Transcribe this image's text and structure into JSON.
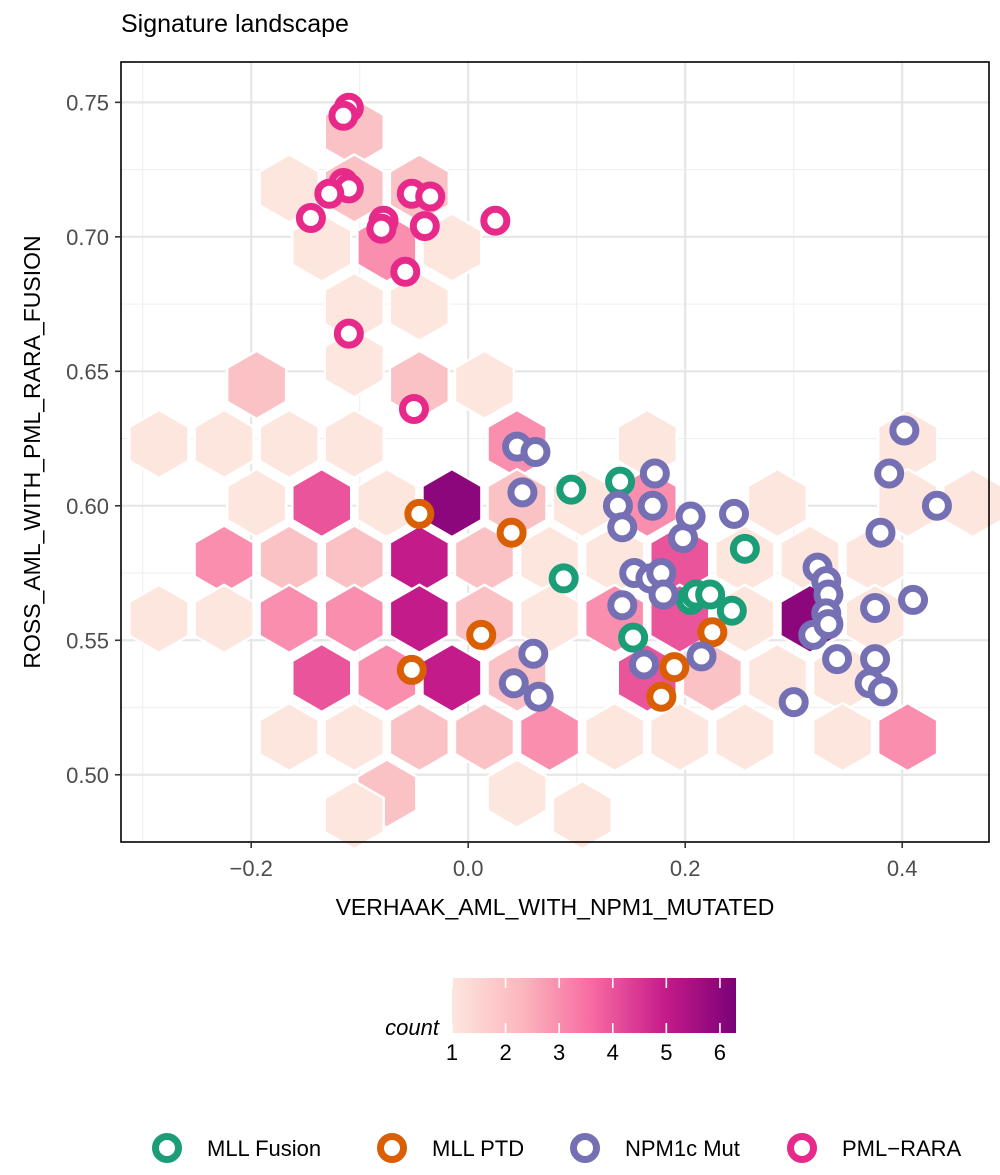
{
  "chart_data": {
    "type": "scatter",
    "title": "Signature landscape",
    "xlabel": "VERHAAK_AML_WITH_NPM1_MUTATED",
    "ylabel": "ROSS_AML_WITH_PML_RARA_FUSION",
    "xlim": [
      -0.32,
      0.48
    ],
    "ylim": [
      0.475,
      0.765
    ],
    "x_ticks": [
      -0.2,
      0.0,
      0.2,
      0.4
    ],
    "x_tick_labels": [
      "−0.2",
      "0.0",
      "0.2",
      "0.4"
    ],
    "y_ticks": [
      0.5,
      0.55,
      0.6,
      0.65,
      0.7,
      0.75
    ],
    "y_tick_labels": [
      "0.50",
      "0.55",
      "0.60",
      "0.65",
      "0.70",
      "0.75"
    ],
    "grid": true,
    "hex_layer": {
      "legend_title": "count",
      "count_ticks": [
        1,
        2,
        3,
        4,
        5,
        6
      ],
      "count_range": [
        1,
        6.3
      ],
      "colors": [
        "#fde6de",
        "#fbb6bd",
        "#f768a1",
        "#c51b8a",
        "#7a0177"
      ],
      "bins": [
        {
          "x": -0.105,
          "y": 0.739,
          "count": 2
        },
        {
          "x": -0.165,
          "y": 0.718,
          "count": 1
        },
        {
          "x": -0.105,
          "y": 0.718,
          "count": 2
        },
        {
          "x": -0.045,
          "y": 0.718,
          "count": 2
        },
        {
          "x": -0.135,
          "y": 0.696,
          "count": 1
        },
        {
          "x": -0.075,
          "y": 0.696,
          "count": 3
        },
        {
          "x": -0.015,
          "y": 0.696,
          "count": 1
        },
        {
          "x": -0.105,
          "y": 0.674,
          "count": 1
        },
        {
          "x": -0.045,
          "y": 0.674,
          "count": 1
        },
        {
          "x": -0.105,
          "y": 0.653,
          "count": 1
        },
        {
          "x": -0.195,
          "y": 0.645,
          "count": 2
        },
        {
          "x": -0.045,
          "y": 0.645,
          "count": 2
        },
        {
          "x": 0.015,
          "y": 0.645,
          "count": 1
        },
        {
          "x": -0.285,
          "y": 0.623,
          "count": 1
        },
        {
          "x": -0.225,
          "y": 0.623,
          "count": 1
        },
        {
          "x": -0.165,
          "y": 0.623,
          "count": 1
        },
        {
          "x": -0.105,
          "y": 0.623,
          "count": 1
        },
        {
          "x": 0.045,
          "y": 0.623,
          "count": 3
        },
        {
          "x": 0.165,
          "y": 0.623,
          "count": 1
        },
        {
          "x": 0.405,
          "y": 0.623,
          "count": 1
        },
        {
          "x": -0.195,
          "y": 0.601,
          "count": 1
        },
        {
          "x": -0.135,
          "y": 0.601,
          "count": 4
        },
        {
          "x": -0.075,
          "y": 0.601,
          "count": 1
        },
        {
          "x": -0.015,
          "y": 0.601,
          "count": 6
        },
        {
          "x": 0.045,
          "y": 0.601,
          "count": 2
        },
        {
          "x": 0.105,
          "y": 0.601,
          "count": 1
        },
        {
          "x": 0.165,
          "y": 0.601,
          "count": 3
        },
        {
          "x": 0.285,
          "y": 0.601,
          "count": 1
        },
        {
          "x": 0.405,
          "y": 0.601,
          "count": 1
        },
        {
          "x": 0.465,
          "y": 0.601,
          "count": 1
        },
        {
          "x": -0.225,
          "y": 0.58,
          "count": 3
        },
        {
          "x": -0.165,
          "y": 0.58,
          "count": 2
        },
        {
          "x": -0.105,
          "y": 0.58,
          "count": 2
        },
        {
          "x": -0.045,
          "y": 0.58,
          "count": 5
        },
        {
          "x": 0.015,
          "y": 0.58,
          "count": 2
        },
        {
          "x": 0.075,
          "y": 0.58,
          "count": 1
        },
        {
          "x": 0.135,
          "y": 0.58,
          "count": 1
        },
        {
          "x": 0.195,
          "y": 0.58,
          "count": 4
        },
        {
          "x": 0.255,
          "y": 0.58,
          "count": 1
        },
        {
          "x": 0.315,
          "y": 0.58,
          "count": 1
        },
        {
          "x": 0.375,
          "y": 0.58,
          "count": 1
        },
        {
          "x": -0.285,
          "y": 0.558,
          "count": 1
        },
        {
          "x": -0.225,
          "y": 0.558,
          "count": 1
        },
        {
          "x": -0.165,
          "y": 0.558,
          "count": 3
        },
        {
          "x": -0.105,
          "y": 0.558,
          "count": 3
        },
        {
          "x": -0.045,
          "y": 0.558,
          "count": 5
        },
        {
          "x": 0.015,
          "y": 0.558,
          "count": 2
        },
        {
          "x": 0.075,
          "y": 0.558,
          "count": 1
        },
        {
          "x": 0.135,
          "y": 0.558,
          "count": 3
        },
        {
          "x": 0.195,
          "y": 0.558,
          "count": 4
        },
        {
          "x": 0.255,
          "y": 0.558,
          "count": 1
        },
        {
          "x": 0.315,
          "y": 0.558,
          "count": 6
        },
        {
          "x": 0.375,
          "y": 0.558,
          "count": 1
        },
        {
          "x": -0.135,
          "y": 0.536,
          "count": 4
        },
        {
          "x": -0.075,
          "y": 0.536,
          "count": 3
        },
        {
          "x": -0.015,
          "y": 0.536,
          "count": 5
        },
        {
          "x": 0.045,
          "y": 0.536,
          "count": 2
        },
        {
          "x": 0.165,
          "y": 0.536,
          "count": 4
        },
        {
          "x": 0.225,
          "y": 0.536,
          "count": 2
        },
        {
          "x": 0.285,
          "y": 0.536,
          "count": 1
        },
        {
          "x": 0.345,
          "y": 0.536,
          "count": 1
        },
        {
          "x": -0.165,
          "y": 0.514,
          "count": 1
        },
        {
          "x": -0.105,
          "y": 0.514,
          "count": 1
        },
        {
          "x": -0.045,
          "y": 0.514,
          "count": 2
        },
        {
          "x": 0.015,
          "y": 0.514,
          "count": 2
        },
        {
          "x": 0.075,
          "y": 0.514,
          "count": 3
        },
        {
          "x": 0.135,
          "y": 0.514,
          "count": 1
        },
        {
          "x": 0.195,
          "y": 0.514,
          "count": 1
        },
        {
          "x": 0.255,
          "y": 0.514,
          "count": 1
        },
        {
          "x": 0.345,
          "y": 0.514,
          "count": 1
        },
        {
          "x": 0.405,
          "y": 0.514,
          "count": 3
        },
        {
          "x": -0.075,
          "y": 0.493,
          "count": 2
        },
        {
          "x": 0.045,
          "y": 0.493,
          "count": 1
        },
        {
          "x": -0.105,
          "y": 0.485,
          "count": 1
        },
        {
          "x": 0.105,
          "y": 0.485,
          "count": 1
        }
      ]
    },
    "series": [
      {
        "name": "MLL Fusion",
        "color": "#1b9e77",
        "points": [
          [
            0.095,
            0.606
          ],
          [
            0.14,
            0.609
          ],
          [
            0.088,
            0.573
          ],
          [
            0.152,
            0.551
          ],
          [
            0.205,
            0.565
          ],
          [
            0.21,
            0.567
          ],
          [
            0.223,
            0.567
          ],
          [
            0.243,
            0.561
          ],
          [
            0.255,
            0.584
          ]
        ]
      },
      {
        "name": "MLL PTD",
        "color": "#d95f02",
        "points": [
          [
            -0.045,
            0.597
          ],
          [
            0.04,
            0.59
          ],
          [
            0.012,
            0.552
          ],
          [
            -0.052,
            0.539
          ],
          [
            0.225,
            0.553
          ],
          [
            0.19,
            0.54
          ],
          [
            0.178,
            0.529
          ]
        ]
      },
      {
        "name": "NPM1c Mut",
        "color": "#7570b3",
        "points": [
          [
            0.045,
            0.622
          ],
          [
            0.062,
            0.62
          ],
          [
            0.05,
            0.605
          ],
          [
            0.138,
            0.6
          ],
          [
            0.142,
            0.592
          ],
          [
            0.172,
            0.612
          ],
          [
            0.17,
            0.6
          ],
          [
            0.198,
            0.588
          ],
          [
            0.205,
            0.596
          ],
          [
            0.245,
            0.597
          ],
          [
            0.142,
            0.563
          ],
          [
            0.153,
            0.575
          ],
          [
            0.168,
            0.573
          ],
          [
            0.178,
            0.575
          ],
          [
            0.18,
            0.567
          ],
          [
            0.162,
            0.541
          ],
          [
            0.215,
            0.544
          ],
          [
            0.06,
            0.545
          ],
          [
            0.042,
            0.534
          ],
          [
            0.065,
            0.529
          ],
          [
            0.3,
            0.527
          ],
          [
            0.322,
            0.577
          ],
          [
            0.33,
            0.572
          ],
          [
            0.332,
            0.567
          ],
          [
            0.33,
            0.56
          ],
          [
            0.318,
            0.552
          ],
          [
            0.332,
            0.556
          ],
          [
            0.34,
            0.543
          ],
          [
            0.37,
            0.534
          ],
          [
            0.375,
            0.543
          ],
          [
            0.375,
            0.562
          ],
          [
            0.38,
            0.59
          ],
          [
            0.382,
            0.531
          ],
          [
            0.388,
            0.612
          ],
          [
            0.41,
            0.565
          ],
          [
            0.402,
            0.628
          ],
          [
            0.432,
            0.6
          ]
        ]
      },
      {
        "name": "PML−RARA",
        "color": "#e7298a",
        "points": [
          [
            -0.11,
            0.748
          ],
          [
            -0.115,
            0.745
          ],
          [
            -0.115,
            0.72
          ],
          [
            -0.11,
            0.718
          ],
          [
            -0.128,
            0.716
          ],
          [
            -0.052,
            0.716
          ],
          [
            -0.035,
            0.715
          ],
          [
            -0.145,
            0.707
          ],
          [
            -0.078,
            0.706
          ],
          [
            -0.08,
            0.703
          ],
          [
            -0.04,
            0.704
          ],
          [
            0.025,
            0.706
          ],
          [
            -0.058,
            0.687
          ],
          [
            -0.11,
            0.664
          ],
          [
            -0.05,
            0.636
          ]
        ]
      }
    ],
    "legend_position": "bottom"
  }
}
